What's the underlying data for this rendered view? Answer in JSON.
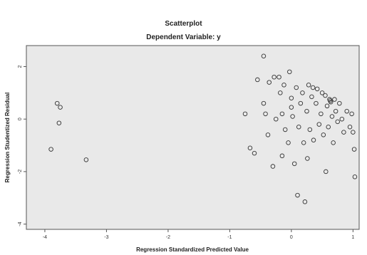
{
  "chart_data": {
    "type": "scatter",
    "title": "Scatterplot",
    "subtitle": "Dependent Variable: y",
    "xlabel": "Regression Standardized Predicted Value",
    "ylabel": "Regression Studentized Residual",
    "xlim": [
      -4.3,
      1.1
    ],
    "ylim": [
      -4.2,
      2.8
    ],
    "x_ticks": [
      -4,
      -3,
      -2,
      -1,
      0,
      1
    ],
    "y_ticks": [
      -4,
      -2,
      0,
      2
    ],
    "grid": false,
    "colors": {
      "plot_background": "#e9e9e9",
      "marker_stroke": "#333333",
      "axis": "#555555"
    },
    "points": [
      {
        "x": -3.8,
        "y": 0.6
      },
      {
        "x": -3.75,
        "y": 0.45
      },
      {
        "x": -3.77,
        "y": -0.15
      },
      {
        "x": -3.9,
        "y": -1.15
      },
      {
        "x": -3.33,
        "y": -1.55
      },
      {
        "x": -0.75,
        "y": 0.2
      },
      {
        "x": -0.67,
        "y": -1.1
      },
      {
        "x": -0.6,
        "y": -1.3
      },
      {
        "x": -0.55,
        "y": 1.5
      },
      {
        "x": -0.45,
        "y": 2.4
      },
      {
        "x": -0.45,
        "y": 0.6
      },
      {
        "x": -0.42,
        "y": 0.2
      },
      {
        "x": -0.38,
        "y": -0.6
      },
      {
        "x": -0.36,
        "y": 1.4
      },
      {
        "x": -0.3,
        "y": -1.8
      },
      {
        "x": -0.28,
        "y": 1.6
      },
      {
        "x": -0.25,
        "y": 0.0
      },
      {
        "x": -0.2,
        "y": 1.6
      },
      {
        "x": -0.18,
        "y": 1.0
      },
      {
        "x": -0.15,
        "y": 0.2
      },
      {
        "x": -0.15,
        "y": -1.4
      },
      {
        "x": -0.12,
        "y": 1.3
      },
      {
        "x": -0.1,
        "y": -0.4
      },
      {
        "x": -0.05,
        "y": -0.9
      },
      {
        "x": -0.03,
        "y": 1.8
      },
      {
        "x": 0.0,
        "y": 0.8
      },
      {
        "x": 0.0,
        "y": 0.45
      },
      {
        "x": 0.02,
        "y": 0.1
      },
      {
        "x": 0.05,
        "y": -1.7
      },
      {
        "x": 0.08,
        "y": 1.2
      },
      {
        "x": 0.1,
        "y": -2.9
      },
      {
        "x": 0.12,
        "y": -0.3
      },
      {
        "x": 0.15,
        "y": 0.6
      },
      {
        "x": 0.18,
        "y": 1.0
      },
      {
        "x": 0.2,
        "y": -0.9
      },
      {
        "x": 0.22,
        "y": -3.15
      },
      {
        "x": 0.25,
        "y": 0.3
      },
      {
        "x": 0.26,
        "y": -1.5
      },
      {
        "x": 0.28,
        "y": 1.3
      },
      {
        "x": 0.3,
        "y": -0.4
      },
      {
        "x": 0.33,
        "y": 0.85
      },
      {
        "x": 0.35,
        "y": 1.2
      },
      {
        "x": 0.36,
        "y": -0.8
      },
      {
        "x": 0.4,
        "y": 0.6
      },
      {
        "x": 0.42,
        "y": 1.15
      },
      {
        "x": 0.45,
        "y": -0.2
      },
      {
        "x": 0.48,
        "y": 0.2
      },
      {
        "x": 0.5,
        "y": 1.0
      },
      {
        "x": 0.52,
        "y": -0.6
      },
      {
        "x": 0.55,
        "y": 0.9
      },
      {
        "x": 0.56,
        "y": -2.0
      },
      {
        "x": 0.58,
        "y": 0.5
      },
      {
        "x": 0.6,
        "y": -0.3
      },
      {
        "x": 0.62,
        "y": 0.75
      },
      {
        "x": 0.63,
        "y": 0.7
      },
      {
        "x": 0.64,
        "y": 0.65
      },
      {
        "x": 0.66,
        "y": 0.1
      },
      {
        "x": 0.68,
        "y": -0.9
      },
      {
        "x": 0.7,
        "y": 0.75
      },
      {
        "x": 0.72,
        "y": 0.3
      },
      {
        "x": 0.75,
        "y": -0.1
      },
      {
        "x": 0.78,
        "y": 0.6
      },
      {
        "x": 0.82,
        "y": 0.0
      },
      {
        "x": 0.85,
        "y": -0.5
      },
      {
        "x": 0.9,
        "y": 0.3
      },
      {
        "x": 0.95,
        "y": -0.3
      },
      {
        "x": 0.98,
        "y": 0.2
      },
      {
        "x": 1.0,
        "y": -0.5
      },
      {
        "x": 1.02,
        "y": -1.15
      },
      {
        "x": 1.03,
        "y": -2.2
      }
    ]
  }
}
